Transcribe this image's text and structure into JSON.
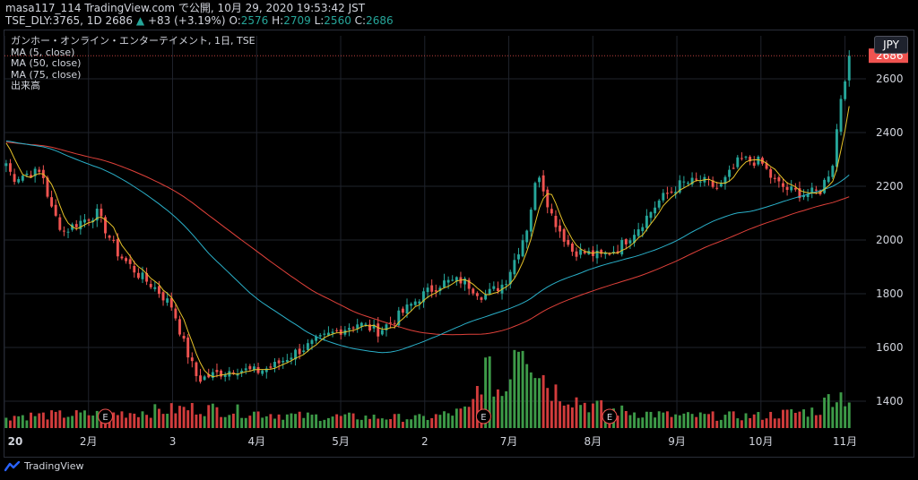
{
  "header": {
    "line1": "masa117_114 TradingView.com で公開, 10月 29, 2020 19:53:42 JST",
    "symbol": "TSE_DLY:3765, 1D 2686",
    "change_arrow": "▲",
    "change": "+83 (+3.19%)",
    "o_label": "O:",
    "o_value": "2576",
    "h_label": "H:",
    "h_value": "2709",
    "l_label": "L:",
    "l_value": "2560",
    "c_label": "C:",
    "c_value": "2686"
  },
  "legend": {
    "title": "ガンホー・オンライン・エンターテイメント, 1日, TSE",
    "ma5": "MA (5, close)",
    "ma50": "MA (50, close)",
    "ma75": "MA (75, close)",
    "volume": "出来高"
  },
  "currency": "JPY",
  "footer": {
    "brand": "TradingView"
  },
  "chart_data": {
    "type": "candlestick",
    "price_axis": {
      "ticks": [
        1400,
        1600,
        1800,
        2000,
        2200,
        2400,
        2600
      ],
      "last_price_label": "2686",
      "range": [
        1300,
        2760
      ]
    },
    "time_axis": {
      "labels": [
        {
          "text": "20",
          "month": 1
        },
        {
          "text": "2月",
          "month": 2
        },
        {
          "text": "3",
          "month": 3
        },
        {
          "text": "4月",
          "month": 4
        },
        {
          "text": "5月",
          "month": 5
        },
        {
          "text": "2",
          "month": 6
        },
        {
          "text": "7月",
          "month": 7
        },
        {
          "text": "8月",
          "month": 8
        },
        {
          "text": "9月",
          "month": 9
        },
        {
          "text": "10月",
          "month": 10
        },
        {
          "text": "11月",
          "month": 11
        }
      ]
    },
    "earnings_markers": [
      {
        "label": "E",
        "month": 2.2
      },
      {
        "label": "E",
        "month": 6.7
      },
      {
        "label": "E",
        "month": 8.2
      }
    ],
    "price_keypoints": [
      [
        1.0,
        2300
      ],
      [
        1.1,
        2230
      ],
      [
        1.3,
        2250
      ],
      [
        1.45,
        2250
      ],
      [
        1.55,
        2120
      ],
      [
        1.7,
        2030
      ],
      [
        1.85,
        2060
      ],
      [
        2.1,
        2100
      ],
      [
        2.35,
        1950
      ],
      [
        2.6,
        1870
      ],
      [
        2.8,
        1820
      ],
      [
        3.0,
        1750
      ],
      [
        3.15,
        1600
      ],
      [
        3.3,
        1480
      ],
      [
        3.5,
        1500
      ],
      [
        3.75,
        1520
      ],
      [
        4.0,
        1510
      ],
      [
        4.2,
        1530
      ],
      [
        4.45,
        1580
      ],
      [
        4.7,
        1620
      ],
      [
        4.95,
        1660
      ],
      [
        5.2,
        1690
      ],
      [
        5.45,
        1660
      ],
      [
        5.7,
        1720
      ],
      [
        5.95,
        1790
      ],
      [
        6.2,
        1840
      ],
      [
        6.45,
        1850
      ],
      [
        6.7,
        1790
      ],
      [
        6.95,
        1840
      ],
      [
        7.1,
        1950
      ],
      [
        7.22,
        2050
      ],
      [
        7.35,
        2260
      ],
      [
        7.5,
        2100
      ],
      [
        7.6,
        2040
      ],
      [
        7.75,
        1960
      ],
      [
        7.95,
        1950
      ],
      [
        8.1,
        1940
      ],
      [
        8.3,
        1970
      ],
      [
        8.55,
        2050
      ],
      [
        8.8,
        2150
      ],
      [
        9.05,
        2210
      ],
      [
        9.3,
        2220
      ],
      [
        9.5,
        2190
      ],
      [
        9.75,
        2300
      ],
      [
        10.0,
        2290
      ],
      [
        10.15,
        2220
      ],
      [
        10.3,
        2190
      ],
      [
        10.5,
        2170
      ],
      [
        10.7,
        2180
      ],
      [
        10.85,
        2280
      ],
      [
        10.95,
        2530
      ],
      [
        11.05,
        2686
      ]
    ],
    "volume_keypoints": [
      [
        1.0,
        0.12
      ],
      [
        2.2,
        0.14
      ],
      [
        3.3,
        0.2
      ],
      [
        4.5,
        0.12
      ],
      [
        6.0,
        0.1
      ],
      [
        6.55,
        0.18
      ],
      [
        6.7,
        0.6
      ],
      [
        6.95,
        0.3
      ],
      [
        7.05,
        0.85
      ],
      [
        7.15,
        1.0
      ],
      [
        7.3,
        0.7
      ],
      [
        7.5,
        0.4
      ],
      [
        7.9,
        0.25
      ],
      [
        8.2,
        0.18
      ],
      [
        9.0,
        0.12
      ],
      [
        10.0,
        0.12
      ],
      [
        10.7,
        0.18
      ],
      [
        10.85,
        0.35
      ],
      [
        11.05,
        0.3
      ]
    ],
    "series": [
      {
        "name": "MA (5, close)",
        "color": "#e6c229"
      },
      {
        "name": "MA (50, close)",
        "color": "#2ab0c9"
      },
      {
        "name": "MA (75, close)",
        "color": "#e0413a"
      }
    ],
    "colors": {
      "up": "#26a69a",
      "down": "#ef5350",
      "vol_up": "#3d9a48",
      "vol_down": "#d23c3c",
      "grid": "#1f232c"
    }
  }
}
